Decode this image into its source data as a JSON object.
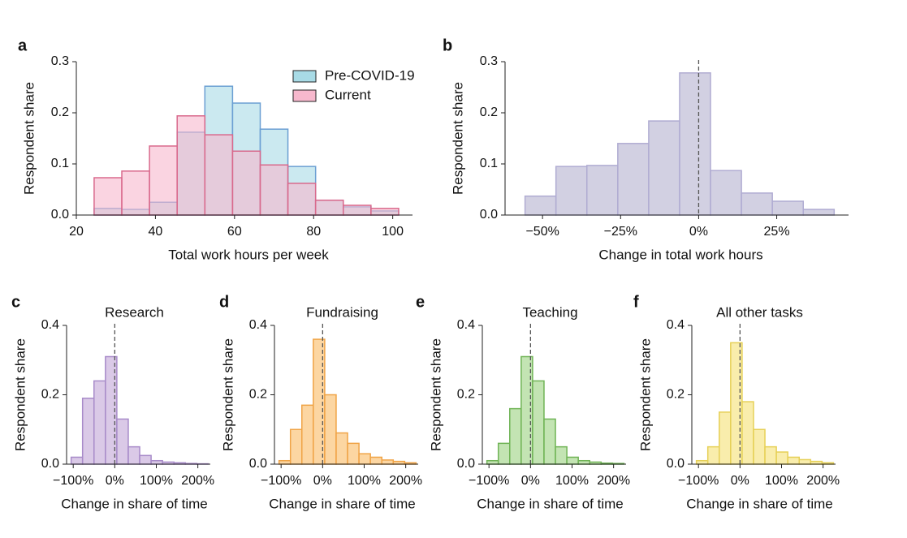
{
  "chart_data": [
    {
      "type": "histogram",
      "panel_label": "a",
      "xlabel": "Total work hours per week",
      "ylabel": "Respondent share",
      "bins": [
        24.5,
        31.5,
        38.5,
        45.5,
        52.5,
        59.5,
        66.5,
        73.5,
        80.5,
        87.5,
        94.5,
        101.5
      ],
      "series": [
        {
          "name": "Pre-COVID-19",
          "color": "#a8dbe6",
          "edgecolor": "#6b9fd3",
          "values": [
            0.013,
            0.011,
            0.025,
            0.162,
            0.252,
            0.219,
            0.168,
            0.095,
            0.029,
            0.016,
            0.008
          ]
        },
        {
          "name": "Current",
          "color": "#f7b8cd",
          "edgecolor": "#d9698c",
          "values": [
            0.073,
            0.086,
            0.135,
            0.194,
            0.157,
            0.125,
            0.098,
            0.062,
            0.029,
            0.019,
            0.013
          ]
        }
      ],
      "legend": "upper right",
      "xlim": [
        20,
        105
      ],
      "xticks": [
        20,
        40,
        60,
        80,
        100
      ],
      "ylim": [
        0,
        0.3
      ],
      "yticks": [
        {
          "value": 0,
          "label": "0.0"
        },
        0.1,
        0.2,
        0.3
      ]
    },
    {
      "type": "histogram",
      "panel_label": "b",
      "xlabel": "Change in total work hours",
      "ylabel": "Respondent share",
      "bins": [
        -55.6,
        -45.7,
        -35.8,
        -25.9,
        -16,
        -6.1,
        3.8,
        13.7,
        23.6,
        33.5,
        43.4
      ],
      "values": [
        0.037,
        0.095,
        0.097,
        0.14,
        0.184,
        0.278,
        0.087,
        0.043,
        0.027,
        0.011
      ],
      "color": "#cac8dd",
      "edgecolor": "#b0acd2",
      "vline": 0,
      "xlim": [
        -62,
        48
      ],
      "xticks": [
        {
          "value": -50,
          "label": "−50%"
        },
        {
          "value": -25,
          "label": "−25%"
        },
        {
          "value": 0,
          "label": "0%"
        },
        {
          "value": 25,
          "label": "25%"
        }
      ],
      "ylim": [
        0,
        0.3
      ],
      "yticks": [
        {
          "value": 0,
          "label": "0.0"
        },
        0.1,
        0.2,
        0.3
      ]
    },
    {
      "type": "histogram",
      "panel_label": "c",
      "title": "Research",
      "xlabel": "Change in share of time",
      "ylabel": "Respondent share",
      "bins": [
        -105,
        -77.5,
        -50,
        -22.5,
        5,
        32.5,
        60,
        87.5,
        115,
        142.5,
        170,
        197.5,
        225
      ],
      "values": [
        0.02,
        0.19,
        0.24,
        0.31,
        0.13,
        0.05,
        0.025,
        0.01,
        0.006,
        0.004,
        0.002,
        0.001
      ],
      "color": "#d3bfe3",
      "edgecolor": "#a88bc9",
      "vline": 0,
      "xlim": [
        -116,
        230
      ],
      "xticks": [
        {
          "value": -100,
          "label": "−100%"
        },
        {
          "value": 0,
          "label": "0%"
        },
        {
          "value": 100,
          "label": "100%"
        },
        {
          "value": 200,
          "label": "200%"
        }
      ],
      "ylim": [
        0,
        0.4
      ],
      "yticks": [
        {
          "value": 0,
          "label": "0.0"
        },
        0.2,
        0.4
      ]
    },
    {
      "type": "histogram",
      "panel_label": "d",
      "title": "Fundraising",
      "xlabel": "Change in share of time",
      "ylabel": "Respondent share",
      "bins": [
        -105,
        -77.5,
        -50,
        -22.5,
        5,
        32.5,
        60,
        87.5,
        115,
        142.5,
        170,
        197.5,
        225
      ],
      "values": [
        0.01,
        0.1,
        0.17,
        0.36,
        0.2,
        0.09,
        0.06,
        0.03,
        0.02,
        0.012,
        0.008,
        0.004
      ],
      "color": "#fbcf92",
      "edgecolor": "#f0a447",
      "vline": 0,
      "xlim": [
        -116,
        230
      ],
      "xticks": [
        {
          "value": -100,
          "label": "−100%"
        },
        {
          "value": 0,
          "label": "0%"
        },
        {
          "value": 100,
          "label": "100%"
        },
        {
          "value": 200,
          "label": "200%"
        }
      ],
      "ylim": [
        0,
        0.4
      ],
      "yticks": [
        {
          "value": 0,
          "label": "0.0"
        },
        0.2,
        0.4
      ]
    },
    {
      "type": "histogram",
      "panel_label": "e",
      "title": "Teaching",
      "xlabel": "Change in share of time",
      "ylabel": "Respondent share",
      "bins": [
        -105,
        -77.5,
        -50,
        -22.5,
        5,
        32.5,
        60,
        87.5,
        115,
        142.5,
        170,
        197.5,
        225
      ],
      "values": [
        0.01,
        0.06,
        0.16,
        0.31,
        0.24,
        0.13,
        0.05,
        0.02,
        0.01,
        0.006,
        0.003,
        0.002
      ],
      "color": "#b9dfa6",
      "edgecolor": "#70b456",
      "vline": 0,
      "xlim": [
        -116,
        230
      ],
      "xticks": [
        {
          "value": -100,
          "label": "−100%"
        },
        {
          "value": 0,
          "label": "0%"
        },
        {
          "value": 100,
          "label": "100%"
        },
        {
          "value": 200,
          "label": "200%"
        }
      ],
      "ylim": [
        0,
        0.4
      ],
      "yticks": [
        {
          "value": 0,
          "label": "0.0"
        },
        0.2,
        0.4
      ]
    },
    {
      "type": "histogram",
      "panel_label": "f",
      "title": "All other tasks",
      "xlabel": "Change in share of time",
      "ylabel": "Respondent share",
      "bins": [
        -105,
        -77.5,
        -50,
        -22.5,
        5,
        32.5,
        60,
        87.5,
        115,
        142.5,
        170,
        197.5,
        225
      ],
      "values": [
        0.01,
        0.05,
        0.15,
        0.35,
        0.18,
        0.1,
        0.05,
        0.035,
        0.02,
        0.013,
        0.008,
        0.004
      ],
      "color": "#f8ea9e",
      "edgecolor": "#e6d057",
      "vline": 0,
      "xlim": [
        -116,
        230
      ],
      "xticks": [
        {
          "value": -100,
          "label": "−100%"
        },
        {
          "value": 0,
          "label": "0%"
        },
        {
          "value": 100,
          "label": "100%"
        },
        {
          "value": 200,
          "label": "200%"
        }
      ],
      "ylim": [
        0,
        0.4
      ],
      "yticks": [
        {
          "value": 0,
          "label": "0.0"
        },
        0.2,
        0.4
      ]
    }
  ]
}
